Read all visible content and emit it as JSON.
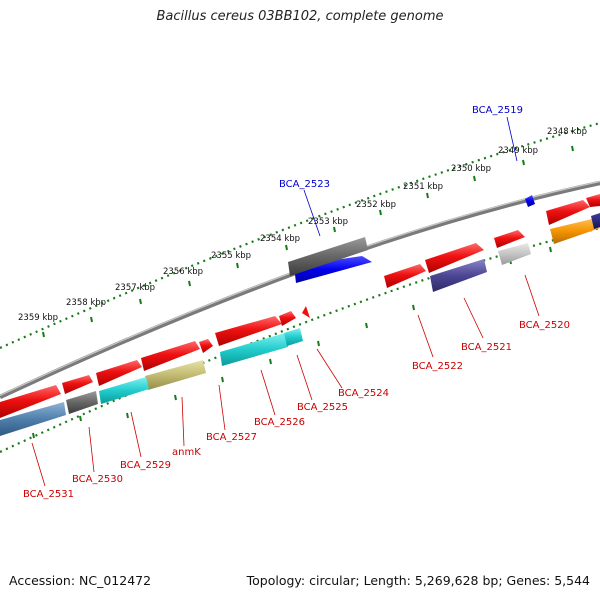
{
  "title": "Bacillus cereus 03BB102, complete genome",
  "footer": {
    "accession": "Accession: NC_012472",
    "stats": "Topology: circular; Length: 5,269,628 bp; Genes: 5,544"
  },
  "scale_labels": [
    "2348 kbp",
    "2349 kbp",
    "2350 kbp",
    "2351 kbp",
    "2352 kbp",
    "2353 kbp",
    "2354 kbp",
    "2355 kbp",
    "2356 kbp",
    "2357 kbp",
    "2358 kbp",
    "2359 kbp"
  ],
  "labels": {
    "BCA_2519": "BCA_2519",
    "BCA_2523": "BCA_2523",
    "BCA_2520": "BCA_2520",
    "BCA_2521": "BCA_2521",
    "BCA_2522": "BCA_2522",
    "BCA_2524": "BCA_2524",
    "BCA_2525": "BCA_2525",
    "BCA_2526": "BCA_2526",
    "BCA_2527": "BCA_2527",
    "anmK": "anmK",
    "BCA_2529": "BCA_2529",
    "BCA_2530": "BCA_2530",
    "BCA_2531": "BCA_2531"
  },
  "colors": {
    "forward_gene": "#ee1111",
    "reverse_label": "#cc0000",
    "forward_label": "#0000cc",
    "tick_green": "#1a7a1a",
    "backbone": "#888888"
  }
}
